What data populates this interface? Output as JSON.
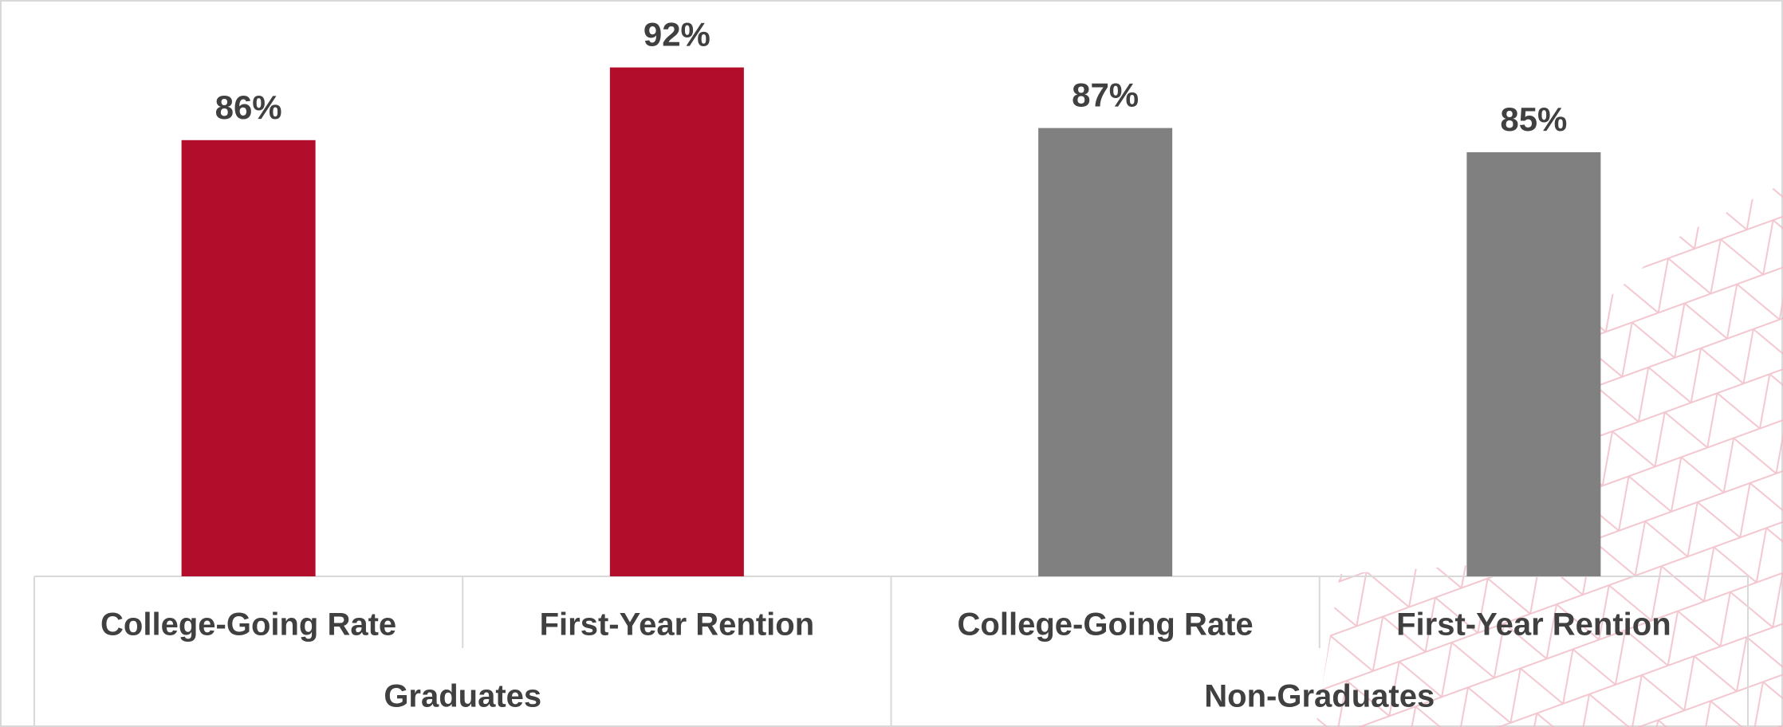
{
  "chart_data": {
    "type": "bar",
    "categories": [
      "College-Going Rate",
      "First-Year Rention",
      "College-Going Rate",
      "First-Year Rention"
    ],
    "groups": [
      "Graduates",
      "Non-Graduates"
    ],
    "values": [
      86,
      92,
      87,
      85
    ],
    "value_labels": [
      "86%",
      "92%",
      "87%",
      "85%"
    ],
    "colors": [
      "#b30d2c",
      "#b30d2c",
      "#808080",
      "#808080"
    ],
    "ylim": [
      50,
      100
    ]
  }
}
